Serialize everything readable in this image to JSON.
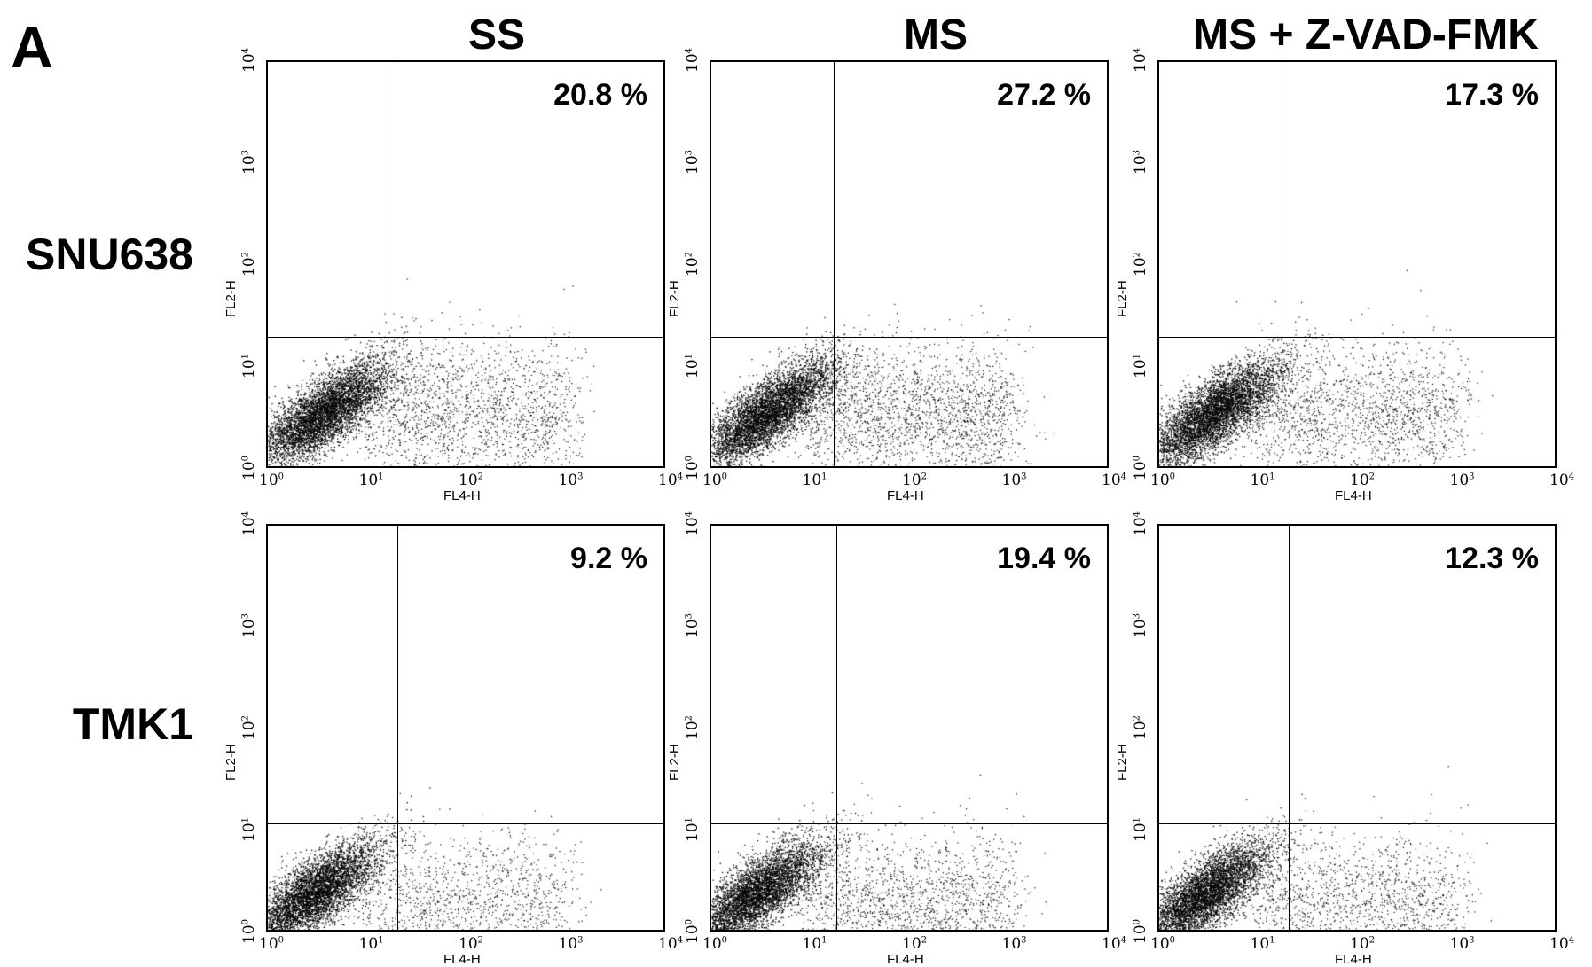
{
  "figure": {
    "panel_label": "A",
    "column_titles": [
      "SS",
      "MS",
      "MS + Z-VAD-FMK"
    ],
    "row_titles": [
      "SNU638",
      "TMK1"
    ]
  },
  "chart_data": [
    {
      "type": "scatter",
      "row": "SNU638",
      "column": "SS",
      "x_scale": "log",
      "y_scale": "log",
      "xlim": [
        1,
        10000
      ],
      "ylim": [
        1,
        10000
      ],
      "xlabel": "FL4-H",
      "ylabel": "FL2-H",
      "x_ticks": [
        "10^0",
        "10^1",
        "10^2",
        "10^3",
        "10^4"
      ],
      "y_ticks": [
        "10^0",
        "10^1",
        "10^2",
        "10^3",
        "10^4"
      ],
      "x_gate": 19,
      "y_gate": 20,
      "percent_label": "20.8 %",
      "annotation": "20.8 %"
    },
    {
      "type": "scatter",
      "row": "SNU638",
      "column": "MS",
      "x_scale": "log",
      "y_scale": "log",
      "xlim": [
        1,
        10000
      ],
      "ylim": [
        1,
        10000
      ],
      "xlabel": "FL4-H",
      "ylabel": "FL2-H",
      "x_ticks": [
        "10^0",
        "10^1",
        "10^2",
        "10^3",
        "10^4"
      ],
      "y_ticks": [
        "10^0",
        "10^1",
        "10^2",
        "10^3",
        "10^4"
      ],
      "x_gate": 17,
      "y_gate": 20,
      "percent_label": "27.2 %",
      "annotation": "27.2 %"
    },
    {
      "type": "scatter",
      "row": "SNU638",
      "column": "MS + Z-VAD-FMK",
      "x_scale": "log",
      "y_scale": "log",
      "xlim": [
        1,
        10000
      ],
      "ylim": [
        1,
        10000
      ],
      "xlabel": "FL4-H",
      "ylabel": "FL2-H",
      "x_ticks": [
        "10^0",
        "10^1",
        "10^2",
        "10^3",
        "10^4"
      ],
      "y_ticks": [
        "10^0",
        "10^1",
        "10^2",
        "10^3",
        "10^4"
      ],
      "x_gate": 17,
      "y_gate": 20,
      "percent_label": "17.3 %",
      "annotation": "17.3 %"
    },
    {
      "type": "scatter",
      "row": "TMK1",
      "column": "SS",
      "x_scale": "log",
      "y_scale": "log",
      "xlim": [
        1,
        10000
      ],
      "ylim": [
        1,
        10000
      ],
      "xlabel": "FL4-H",
      "ylabel": "FL2-H",
      "x_ticks": [
        "10^0",
        "10^1",
        "10^2",
        "10^3",
        "10^4"
      ],
      "y_ticks": [
        "10^0",
        "10^1",
        "10^2",
        "10^3",
        "10^4"
      ],
      "x_gate": 20,
      "y_gate": 12,
      "percent_label": "9.2 %",
      "annotation": "9.2 %"
    },
    {
      "type": "scatter",
      "row": "TMK1",
      "column": "MS",
      "x_scale": "log",
      "y_scale": "log",
      "xlim": [
        1,
        10000
      ],
      "ylim": [
        1,
        10000
      ],
      "xlabel": "FL4-H",
      "ylabel": "FL2-H",
      "x_ticks": [
        "10^0",
        "10^1",
        "10^2",
        "10^3",
        "10^4"
      ],
      "y_ticks": [
        "10^0",
        "10^1",
        "10^2",
        "10^3",
        "10^4"
      ],
      "x_gate": 18,
      "y_gate": 12,
      "percent_label": "19.4 %",
      "annotation": "19.4 %"
    },
    {
      "type": "scatter",
      "row": "TMK1",
      "column": "MS + Z-VAD-FMK",
      "x_scale": "log",
      "y_scale": "log",
      "xlim": [
        1,
        10000
      ],
      "ylim": [
        1,
        10000
      ],
      "xlabel": "FL4-H",
      "ylabel": "FL2-H",
      "x_ticks": [
        "10^0",
        "10^1",
        "10^2",
        "10^3",
        "10^4"
      ],
      "y_ticks": [
        "10^0",
        "10^1",
        "10^2",
        "10^3",
        "10^4"
      ],
      "x_gate": 20,
      "y_gate": 12,
      "percent_label": "12.3 %",
      "annotation": "12.3 %"
    }
  ]
}
